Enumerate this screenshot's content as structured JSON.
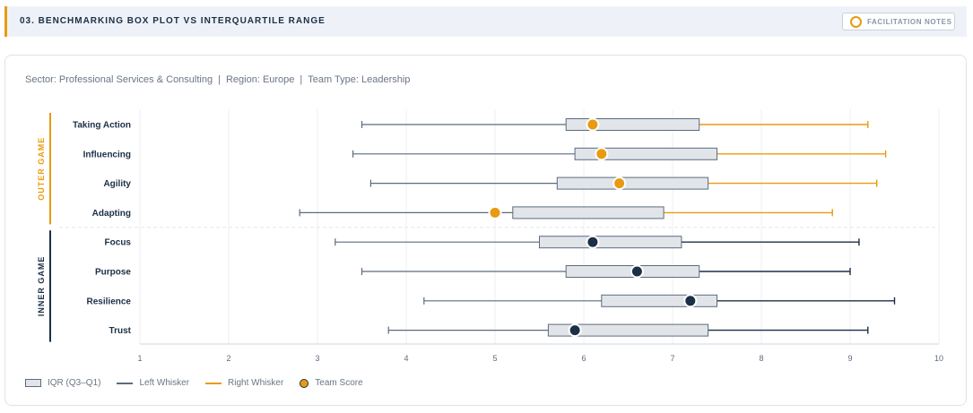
{
  "header": {
    "title": "03. BENCHMARKING BOX PLOT VS INTERQUARTILE RANGE",
    "notes_label": "FACILITATION NOTES"
  },
  "filters": {
    "sector": "Sector: Professional Services & Consulting",
    "region": "Region: Europe",
    "team_type": "Team Type: Leadership",
    "separator": "|"
  },
  "legend": {
    "iqr": "IQR (Q3–Q1)",
    "left_whisker": "Left Whisker",
    "right_whisker": "Right Whisker",
    "team_score": "Team Score"
  },
  "colors": {
    "outer": "#e89b10",
    "inner": "#1b2f46",
    "box_fill": "#e1e5ea",
    "box_stroke": "#5c6b7e",
    "grid": "#eceff3"
  },
  "chart_data": {
    "type": "boxplot",
    "orientation": "horizontal",
    "xlim": [
      1,
      10
    ],
    "xticks": [
      1,
      2,
      3,
      4,
      5,
      6,
      7,
      8,
      9,
      10
    ],
    "grid": true,
    "legend_position": "bottom-left",
    "groups": [
      {
        "name": "OUTER GAME",
        "color": "#e89b10",
        "items": [
          {
            "label": "Taking Action",
            "min": 3.5,
            "q1": 5.8,
            "q3": 7.3,
            "max": 9.2,
            "score": 6.1
          },
          {
            "label": "Influencing",
            "min": 3.4,
            "q1": 5.9,
            "q3": 7.5,
            "max": 9.4,
            "score": 6.2
          },
          {
            "label": "Agility",
            "min": 3.6,
            "q1": 5.7,
            "q3": 7.4,
            "max": 9.3,
            "score": 6.4
          },
          {
            "label": "Adapting",
            "min": 2.8,
            "q1": 5.2,
            "q3": 6.9,
            "max": 8.8,
            "score": 5.0
          }
        ]
      },
      {
        "name": "INNER GAME",
        "color": "#1b2f46",
        "items": [
          {
            "label": "Focus",
            "min": 3.2,
            "q1": 5.5,
            "q3": 7.1,
            "max": 9.1,
            "score": 6.1
          },
          {
            "label": "Purpose",
            "min": 3.5,
            "q1": 5.8,
            "q3": 7.3,
            "max": 9.0,
            "score": 6.6
          },
          {
            "label": "Resilience",
            "min": 4.2,
            "q1": 6.2,
            "q3": 7.5,
            "max": 9.5,
            "score": 7.2
          },
          {
            "label": "Trust",
            "min": 3.8,
            "q1": 5.6,
            "q3": 7.4,
            "max": 9.2,
            "score": 5.9
          }
        ]
      }
    ]
  }
}
